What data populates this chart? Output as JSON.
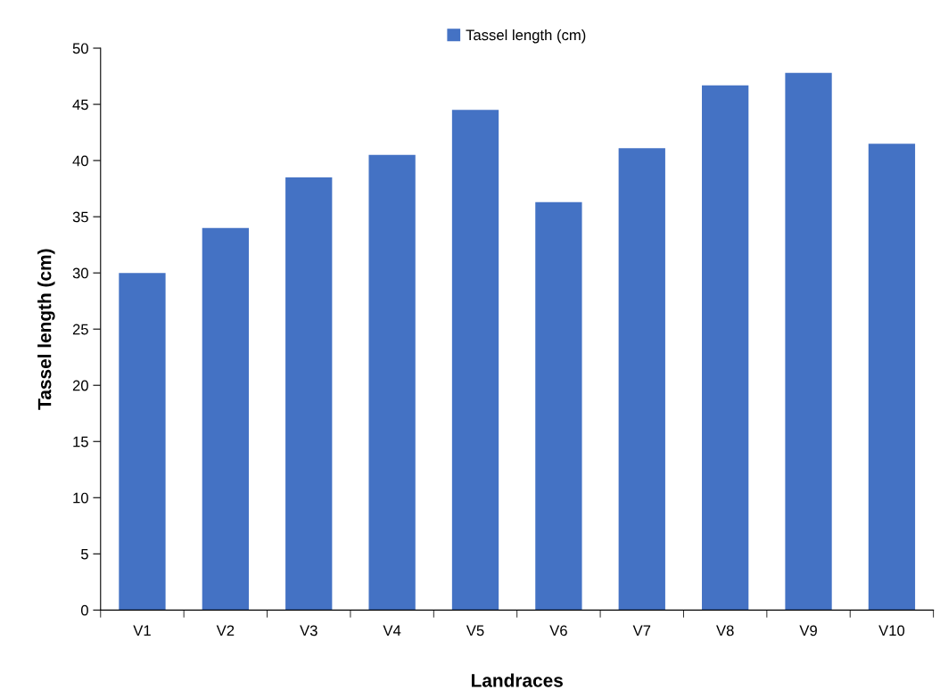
{
  "chart_data": {
    "type": "bar",
    "xlabel": "Landraces",
    "ylabel": "Tassel length (cm)",
    "categories": [
      "V1",
      "V2",
      "V3",
      "V4",
      "V5",
      "V6",
      "V7",
      "V8",
      "V9",
      "V10"
    ],
    "series": [
      {
        "name": "Tassel length (cm)",
        "color": "#4472c4",
        "values": [
          30.0,
          34.0,
          38.5,
          40.5,
          44.5,
          36.3,
          41.1,
          46.7,
          47.8,
          41.5
        ]
      }
    ],
    "ylim": [
      0,
      50
    ],
    "yticks": [
      0,
      5,
      10,
      15,
      20,
      25,
      30,
      35,
      40,
      45,
      50
    ],
    "grid": false,
    "legend": "top"
  }
}
